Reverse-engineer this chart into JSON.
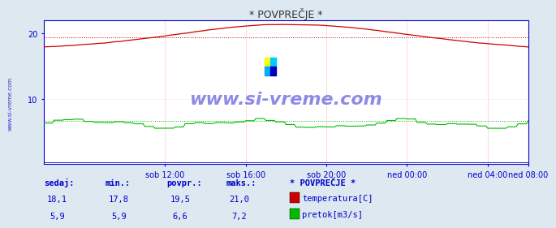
{
  "title": "* POVPREČJE *",
  "bg_color": "#dde8f0",
  "plot_bg_color": "#ffffff",
  "grid_color_h": "#ffcccc",
  "grid_color_v": "#ffcccc",
  "xlabel_color": "#0000cc",
  "ylabel_color": "#0000cc",
  "title_color": "#333333",
  "watermark": "www.si-vreme.com",
  "watermark_color": "#0000cc",
  "ylim": [
    0,
    22
  ],
  "yticks": [
    10,
    20
  ],
  "x_labels": [
    "sob 12:00",
    "sob 16:00",
    "sob 20:00",
    "ned 00:00",
    "ned 04:00",
    "ned 08:00"
  ],
  "x_tick_positions": [
    72,
    120,
    168,
    216,
    264,
    288
  ],
  "temp_avg": 19.5,
  "flow_avg": 6.6,
  "legend_title": "* POVPREČJE *",
  "legend_items": [
    "temperatura[C]",
    "pretok[m3/s]"
  ],
  "legend_colors": [
    "#cc0000",
    "#00bb00"
  ],
  "stats_labels": [
    "sedaj:",
    "min.:",
    "povpr.:",
    "maks.:"
  ],
  "temp_stats": [
    "18,1",
    "17,8",
    "19,5",
    "21,0"
  ],
  "flow_stats": [
    "5,9",
    "5,9",
    "6,6",
    "7,2"
  ]
}
